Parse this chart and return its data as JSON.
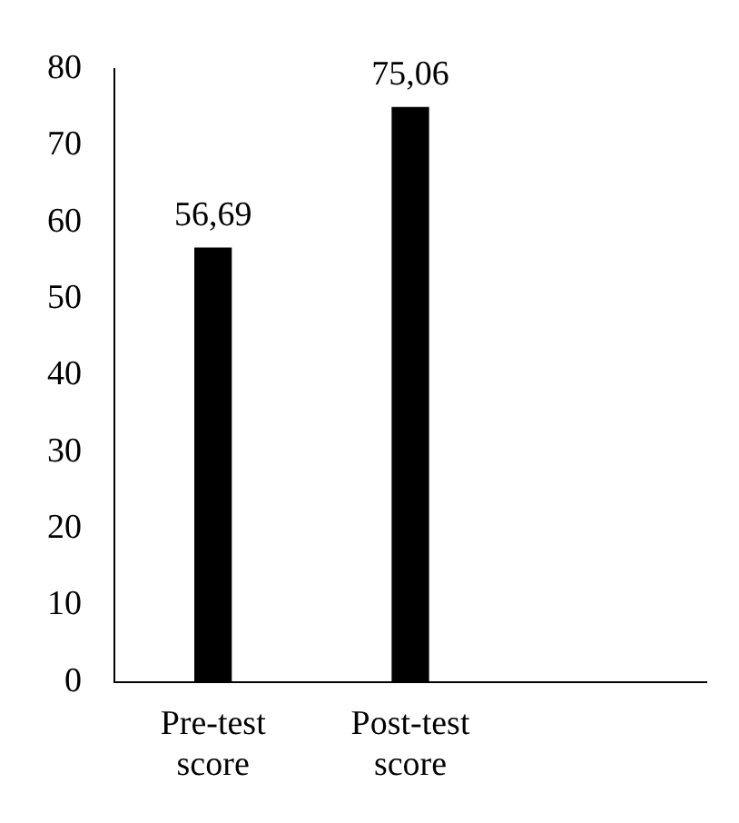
{
  "chart_data": {
    "type": "bar",
    "categories": [
      "Pre-test score",
      "Post-test score",
      null
    ],
    "values": [
      56.69,
      75.06,
      null
    ],
    "color": "#000000",
    "value_labels": [
      "56,69",
      "75,06",
      null
    ],
    "ylim": [
      0,
      80
    ],
    "yticks": [
      0,
      10,
      20,
      30,
      40,
      50,
      60,
      70,
      80
    ],
    "grid": false,
    "legend": false
  }
}
